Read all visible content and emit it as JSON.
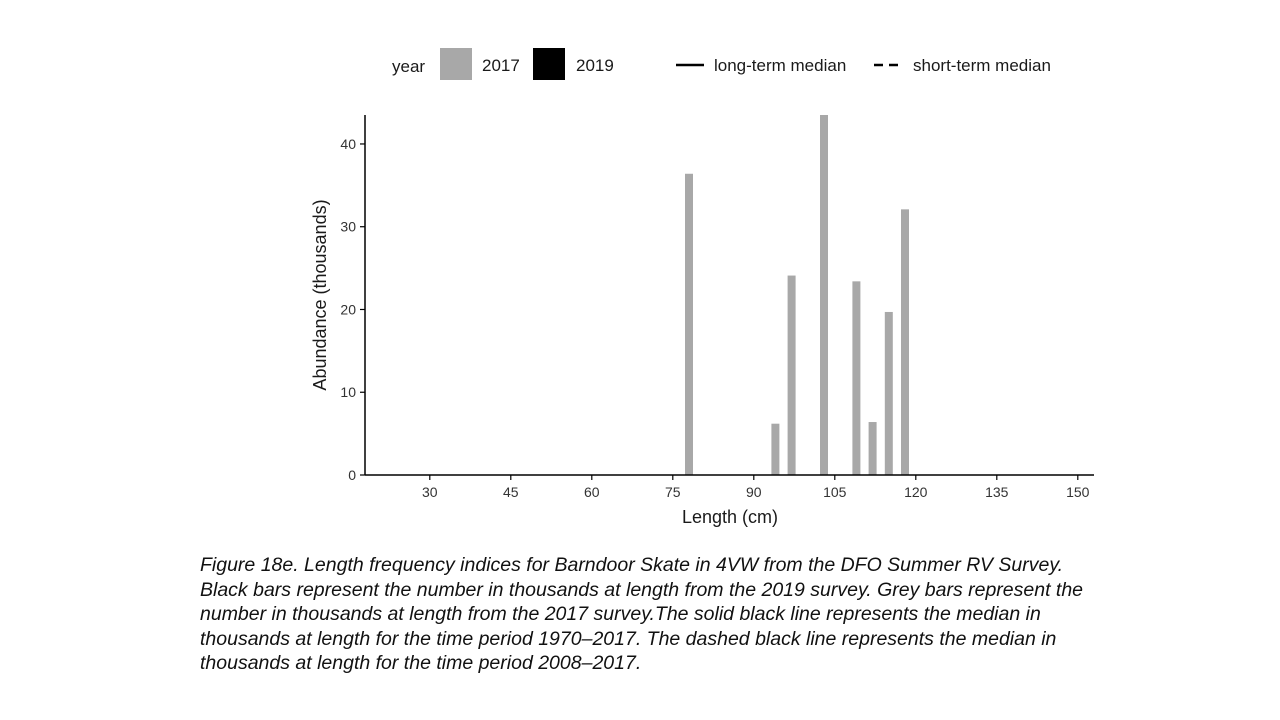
{
  "chart_data": {
    "type": "bar",
    "xlabel": "Length (cm)",
    "ylabel": "Abundance (thousands)",
    "xlim": [
      18,
      153
    ],
    "ylim": [
      0,
      43.5
    ],
    "x_ticks": [
      30,
      45,
      60,
      75,
      90,
      105,
      120,
      135,
      150
    ],
    "y_ticks": [
      0,
      10,
      20,
      30,
      40
    ],
    "grid": false,
    "legend_placement": "top",
    "legend": {
      "title": "year",
      "fill_entries": [
        {
          "label": "2017",
          "color": "#a8a8a8"
        },
        {
          "label": "2019",
          "color": "#000000"
        }
      ],
      "line_entries": [
        {
          "label": "long-term median",
          "style": "solid"
        },
        {
          "label": "short-term median",
          "style": "dashed"
        }
      ]
    },
    "series": [
      {
        "name": "2017",
        "color": "#a8a8a8",
        "x": [
          78,
          94,
          97,
          103,
          109,
          112,
          115,
          118
        ],
        "values": [
          36.4,
          6.2,
          24.1,
          43.5,
          23.4,
          6.4,
          19.7,
          32.1
        ]
      },
      {
        "name": "2019",
        "color": "#000000",
        "x": [],
        "values": []
      }
    ]
  },
  "caption": {
    "lines": [
      "Figure 18e. Length frequency indices for Barndoor Skate in 4VW from the DFO Summer RV Survey.",
      "Black bars represent the number in thousands at length from the 2019 survey. Grey bars represent the",
      "number in thousands at length from the 2017 survey.The solid black line represents the median in",
      "thousands at length for the time period 1970–2017.  The dashed black line represents the median in",
      "thousands at length for the time period 2008–2017."
    ]
  }
}
